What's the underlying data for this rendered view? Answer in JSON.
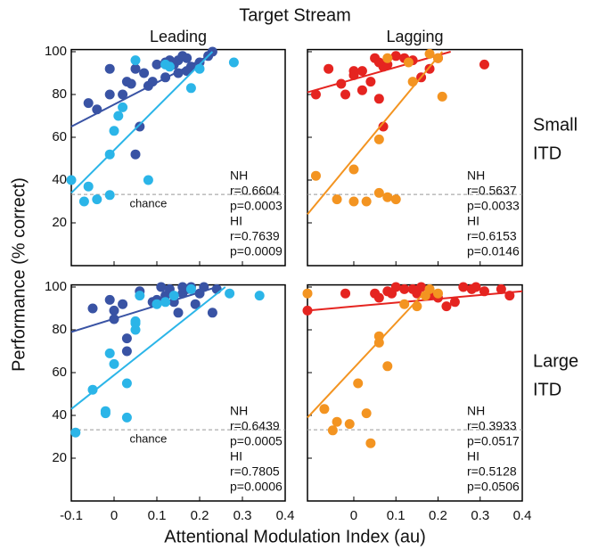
{
  "title": "Target Stream",
  "ylabel": "Performance (% correct)",
  "xlabel": "Attentional Modulation Index (au)",
  "row_labels": [
    [
      "Small",
      "ITD"
    ],
    [
      "Large",
      "ITD"
    ]
  ],
  "chart_data": [
    {
      "type": "scatter",
      "title": "Leading",
      "title_color": "#3953a4",
      "xlim": [
        -0.1,
        0.4
      ],
      "xticks": [
        -0.1,
        0,
        0.1,
        0.2,
        0.3,
        0.4
      ],
      "ylim": [
        0,
        101
      ],
      "yticks": [
        20,
        40,
        60,
        80,
        100
      ],
      "xtick_labels": false,
      "ytick_labels": true,
      "chance": 33.3,
      "chance_label": "chance",
      "series": [
        {
          "name": "NH",
          "color": "#3953a4",
          "r": "r=0.6604",
          "p": "p=0.0003",
          "x": [
            -0.06,
            -0.04,
            -0.01,
            -0.01,
            0.02,
            0.03,
            0.04,
            0.05,
            0.06,
            0.05,
            0.07,
            0.08,
            0.09,
            0.1,
            0.12,
            0.13,
            0.14,
            0.15,
            0.16,
            0.17,
            0.18,
            0.2,
            0.22,
            0.23,
            0.15,
            0.17,
            0.12
          ],
          "values": [
            76,
            73,
            80,
            92,
            80,
            86,
            85,
            92,
            65,
            52,
            90,
            84,
            86,
            94,
            95,
            96,
            94,
            96,
            98,
            97,
            93,
            95,
            98,
            100,
            90,
            91,
            88
          ],
          "fit_x": [
            -0.1,
            0.24
          ],
          "fit_values": [
            65,
            100
          ]
        },
        {
          "name": "HI",
          "color": "#2bb5e8",
          "r": "r=0.7639",
          "p": "p=0.0009",
          "x": [
            -0.1,
            -0.07,
            -0.06,
            -0.04,
            -0.01,
            -0.01,
            0.0,
            0.01,
            0.02,
            0.05,
            0.08,
            0.12,
            0.13,
            0.18,
            0.2,
            0.28
          ],
          "values": [
            40,
            30,
            37,
            31,
            52,
            33,
            63,
            70,
            74,
            96,
            40,
            94,
            93,
            83,
            92,
            95
          ],
          "fit_x": [
            -0.1,
            0.23
          ],
          "fit_values": [
            34,
            100
          ]
        }
      ]
    },
    {
      "type": "scatter",
      "title": "Lagging",
      "title_color": "#f05a28",
      "xlim": [
        -0.11,
        0.4
      ],
      "xticks": [
        0,
        0.1,
        0.2,
        0.3,
        0.4
      ],
      "ylim": [
        0,
        101
      ],
      "yticks": [
        20,
        40,
        60,
        80,
        100
      ],
      "xtick_labels": false,
      "ytick_labels": false,
      "chance": 33.3,
      "series": [
        {
          "name": "NH",
          "color": "#e52420",
          "r": "r=0.5637",
          "p": "p=0.0033",
          "x": [
            -0.09,
            -0.06,
            -0.03,
            -0.02,
            0.0,
            0.0,
            0.02,
            0.02,
            0.04,
            0.05,
            0.06,
            0.06,
            0.07,
            0.08,
            0.07,
            0.1,
            0.12,
            0.14,
            0.16,
            0.18,
            0.2,
            0.31
          ],
          "values": [
            80,
            92,
            85,
            80,
            91,
            89,
            91,
            82,
            86,
            97,
            95,
            78,
            93,
            94,
            65,
            98,
            97,
            96,
            88,
            92,
            97,
            94
          ],
          "fit_x": [
            -0.11,
            0.23
          ],
          "fit_values": [
            81,
            100
          ]
        },
        {
          "name": "HI",
          "color": "#f39421",
          "r": "r=0.6153",
          "p": "p=0.0146",
          "x": [
            -0.09,
            -0.04,
            0.0,
            0.0,
            0.03,
            0.06,
            0.06,
            0.08,
            0.1,
            0.13,
            0.14,
            0.18,
            0.2,
            0.21,
            0.08
          ],
          "values": [
            42,
            31,
            45,
            30,
            30,
            59,
            34,
            32,
            31,
            95,
            86,
            99,
            97,
            79,
            97
          ],
          "fit_x": [
            -0.11,
            0.21
          ],
          "fit_values": [
            24,
            100
          ]
        }
      ]
    },
    {
      "type": "scatter",
      "xlim": [
        -0.1,
        0.4
      ],
      "xticks": [
        -0.1,
        0,
        0.1,
        0.2,
        0.3,
        0.4
      ],
      "ylim": [
        0,
        101
      ],
      "yticks": [
        20,
        40,
        60,
        80,
        100
      ],
      "xtick_labels": true,
      "ytick_labels": true,
      "chance": 33.3,
      "chance_label": "chance",
      "series": [
        {
          "name": "NH",
          "color": "#3953a4",
          "r": "r=0.6439",
          "p": "p=0.0005",
          "x": [
            -0.05,
            -0.01,
            0.0,
            0.0,
            0.02,
            0.03,
            0.03,
            0.06,
            0.09,
            0.1,
            0.11,
            0.12,
            0.13,
            0.14,
            0.16,
            0.17,
            0.18,
            0.2,
            0.21,
            0.23,
            0.24,
            0.15,
            0.19,
            0.16
          ],
          "values": [
            90,
            94,
            89,
            85,
            92,
            76,
            70,
            98,
            93,
            94,
            100,
            96,
            99,
            93,
            97,
            99,
            100,
            97,
            100,
            88,
            99,
            88,
            92,
            100
          ],
          "fit_x": [
            -0.1,
            0.24
          ],
          "fit_values": [
            79,
            100
          ]
        },
        {
          "name": "HI",
          "color": "#2bb5e8",
          "r": "r=0.7805",
          "p": "p=0.0006",
          "x": [
            -0.09,
            -0.05,
            -0.02,
            -0.02,
            -0.01,
            0.0,
            0.03,
            0.03,
            0.05,
            0.05,
            0.06,
            0.1,
            0.12,
            0.14,
            0.18,
            0.27,
            0.34,
            0.05
          ],
          "values": [
            32,
            52,
            42,
            41,
            69,
            64,
            39,
            55,
            80,
            84,
            96,
            92,
            93,
            96,
            99,
            97,
            96,
            83
          ],
          "fit_x": [
            -0.1,
            0.26
          ],
          "fit_values": [
            43,
            100
          ]
        }
      ]
    },
    {
      "type": "scatter",
      "xlim": [
        -0.11,
        0.4
      ],
      "xticks": [
        0,
        0.1,
        0.2,
        0.3,
        0.4
      ],
      "ylim": [
        0,
        101
      ],
      "yticks": [
        20,
        40,
        60,
        80,
        100
      ],
      "xtick_labels": true,
      "ytick_labels": false,
      "chance": 33.3,
      "series": [
        {
          "name": "NH",
          "color": "#e52420",
          "r": "r=0.3933",
          "p": "p=0.0517",
          "x": [
            -0.11,
            0.06,
            0.08,
            0.1,
            0.12,
            0.14,
            0.15,
            0.16,
            0.18,
            0.2,
            0.22,
            0.24,
            0.26,
            0.28,
            0.29,
            0.31,
            0.35,
            0.37,
            0.05,
            -0.02,
            0.09
          ],
          "values": [
            89,
            95,
            98,
            100,
            99,
            99,
            97,
            100,
            96,
            95,
            91,
            93,
            100,
            99,
            100,
            98,
            99,
            96,
            97,
            97,
            97
          ],
          "fit_x": [
            -0.11,
            0.4
          ],
          "fit_values": [
            89,
            98
          ]
        },
        {
          "name": "HI",
          "color": "#f39421",
          "r": "r=0.5128",
          "p": "p=0.0506",
          "x": [
            -0.11,
            -0.07,
            -0.05,
            -0.04,
            -0.01,
            0.01,
            0.03,
            0.04,
            0.06,
            0.06,
            0.08,
            0.15,
            0.17,
            0.18,
            0.12,
            0.2
          ],
          "values": [
            97,
            43,
            33,
            37,
            36,
            55,
            41,
            27,
            77,
            74,
            63,
            91,
            96,
            99,
            92,
            97
          ],
          "fit_x": [
            -0.11,
            0.18
          ],
          "fit_values": [
            39,
            100
          ]
        }
      ]
    }
  ]
}
